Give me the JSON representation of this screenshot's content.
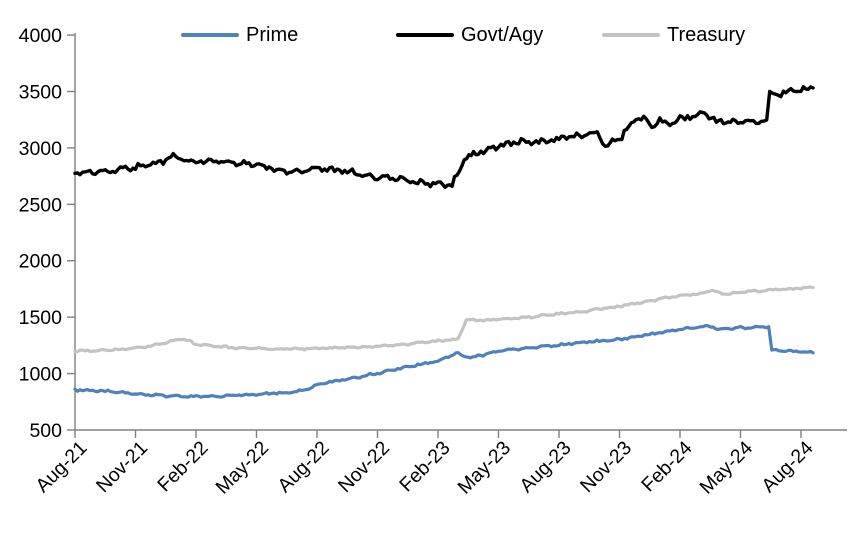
{
  "chart_data": {
    "type": "line",
    "title": "",
    "grid": false,
    "legend": {
      "position": "top"
    },
    "x_axis": {
      "unit": "month",
      "months_per_tick": 3,
      "tick_labels": [
        "Aug-21",
        "Nov-21",
        "Feb-22",
        "May-22",
        "Aug-22",
        "Nov-22",
        "Feb-23",
        "May-23",
        "Aug-23",
        "Nov-23",
        "Feb-24",
        "May-24",
        "Aug-24"
      ]
    },
    "y_axis": {
      "min": 500,
      "max": 4000,
      "ticks": [
        4000,
        3500,
        3000,
        2500,
        2000,
        1500,
        1000,
        500
      ]
    },
    "series": [
      {
        "name": "Prime",
        "color": "#4F81BD",
        "wiggle": 13,
        "points": [
          [
            0,
            855
          ],
          [
            1,
            847
          ],
          [
            2,
            838
          ],
          [
            3,
            822
          ],
          [
            4,
            810
          ],
          [
            5,
            800
          ],
          [
            6,
            795
          ],
          [
            7,
            798
          ],
          [
            8,
            806
          ],
          [
            9,
            818
          ],
          [
            10,
            826
          ],
          [
            11,
            840
          ],
          [
            11.5,
            860
          ],
          [
            12,
            905
          ],
          [
            13,
            938
          ],
          [
            14,
            968
          ],
          [
            15,
            1002
          ],
          [
            16,
            1042
          ],
          [
            17,
            1078
          ],
          [
            18,
            1108
          ],
          [
            18.9,
            1180
          ],
          [
            19.6,
            1140
          ],
          [
            21,
            1200
          ],
          [
            22,
            1218
          ],
          [
            23,
            1236
          ],
          [
            24,
            1252
          ],
          [
            25,
            1274
          ],
          [
            26,
            1288
          ],
          [
            27,
            1302
          ],
          [
            28,
            1333
          ],
          [
            29,
            1363
          ],
          [
            30,
            1393
          ],
          [
            31,
            1410
          ],
          [
            31.4,
            1422
          ],
          [
            32,
            1393
          ],
          [
            33,
            1406
          ],
          [
            34,
            1412
          ],
          [
            34.4,
            1416
          ],
          [
            34.55,
            1208
          ],
          [
            35.5,
            1200
          ],
          [
            36.6,
            1183
          ]
        ]
      },
      {
        "name": "Govt/Agy",
        "color": "#000000",
        "wiggle": 38,
        "points": [
          [
            0,
            2775
          ],
          [
            1,
            2783
          ],
          [
            2,
            2800
          ],
          [
            3,
            2830
          ],
          [
            4,
            2862
          ],
          [
            5,
            2928
          ],
          [
            5.4,
            2895
          ],
          [
            6,
            2872
          ],
          [
            7,
            2885
          ],
          [
            8,
            2862
          ],
          [
            9,
            2852
          ],
          [
            10,
            2806
          ],
          [
            11,
            2788
          ],
          [
            12,
            2815
          ],
          [
            13,
            2800
          ],
          [
            14,
            2772
          ],
          [
            15,
            2742
          ],
          [
            16,
            2722
          ],
          [
            17,
            2700
          ],
          [
            18,
            2680
          ],
          [
            18.7,
            2662
          ],
          [
            19.3,
            2900
          ],
          [
            20,
            2955
          ],
          [
            21,
            3012
          ],
          [
            22,
            3062
          ],
          [
            23,
            3050
          ],
          [
            24,
            3082
          ],
          [
            25,
            3108
          ],
          [
            25.9,
            3142
          ],
          [
            26.3,
            3030
          ],
          [
            27,
            3080
          ],
          [
            27.7,
            3250
          ],
          [
            28.2,
            3266
          ],
          [
            28.6,
            3186
          ],
          [
            29,
            3248
          ],
          [
            29.5,
            3204
          ],
          [
            30,
            3252
          ],
          [
            31,
            3290
          ],
          [
            31.2,
            3310
          ],
          [
            31.8,
            3240
          ],
          [
            32.5,
            3228
          ],
          [
            33.5,
            3238
          ],
          [
            34.3,
            3246
          ],
          [
            34.45,
            3470
          ],
          [
            35,
            3488
          ],
          [
            36,
            3515
          ],
          [
            36.6,
            3532
          ]
        ]
      },
      {
        "name": "Treasury",
        "color": "#C3C3C3",
        "wiggle": 13,
        "points": [
          [
            0,
            1205
          ],
          [
            1,
            1202
          ],
          [
            2,
            1210
          ],
          [
            3,
            1225
          ],
          [
            4,
            1252
          ],
          [
            5,
            1298
          ],
          [
            5.3,
            1312
          ],
          [
            6,
            1262
          ],
          [
            7,
            1240
          ],
          [
            8,
            1228
          ],
          [
            9,
            1222
          ],
          [
            10,
            1215
          ],
          [
            11,
            1218
          ],
          [
            12,
            1222
          ],
          [
            13,
            1228
          ],
          [
            14,
            1235
          ],
          [
            15,
            1242
          ],
          [
            16,
            1255
          ],
          [
            17,
            1272
          ],
          [
            18,
            1290
          ],
          [
            19,
            1305
          ],
          [
            19.4,
            1480
          ],
          [
            20,
            1470
          ],
          [
            21,
            1482
          ],
          [
            22,
            1492
          ],
          [
            23,
            1512
          ],
          [
            24,
            1530
          ],
          [
            25,
            1548
          ],
          [
            26,
            1572
          ],
          [
            27,
            1595
          ],
          [
            28,
            1628
          ],
          [
            29,
            1662
          ],
          [
            30,
            1692
          ],
          [
            31,
            1708
          ],
          [
            31.6,
            1740
          ],
          [
            32.1,
            1702
          ],
          [
            33,
            1722
          ],
          [
            34,
            1736
          ],
          [
            35,
            1746
          ],
          [
            36,
            1756
          ],
          [
            36.6,
            1762
          ]
        ]
      }
    ],
    "colors": {
      "axis": "#808080",
      "label_text": "#000000",
      "background": "#FFFFFF"
    }
  }
}
